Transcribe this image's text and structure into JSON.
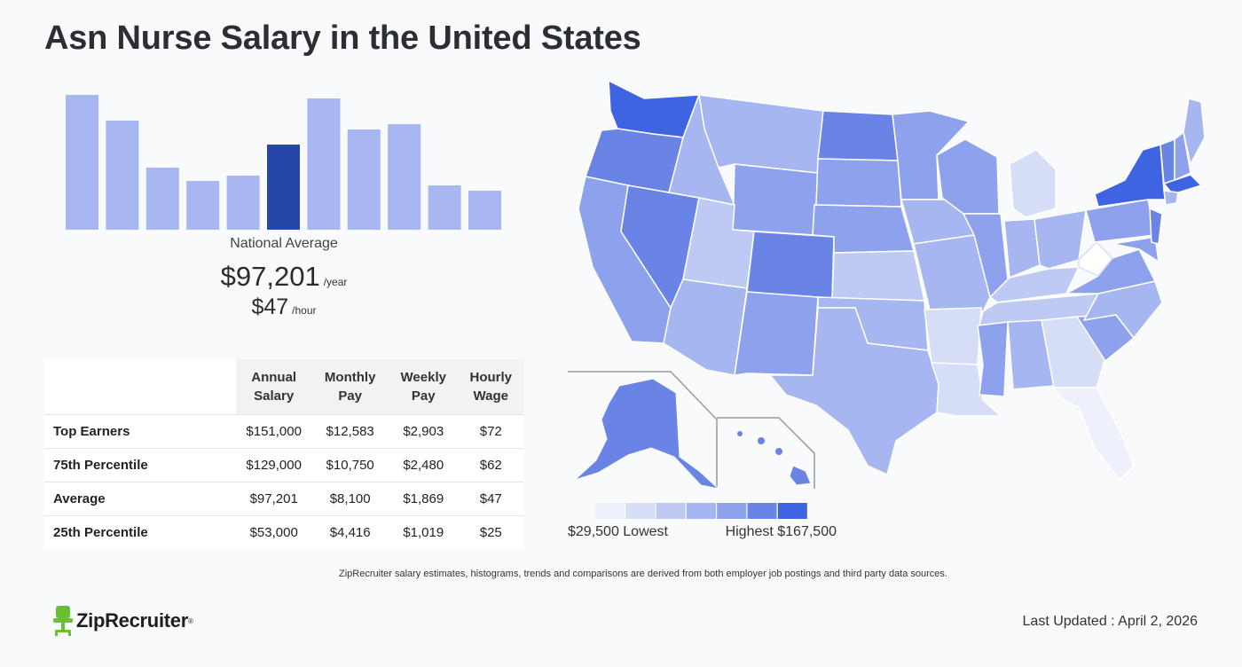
{
  "title": "Asn Nurse Salary in the United States",
  "national": {
    "label": "National Average",
    "yearly": "$97,201",
    "yearly_unit": "/year",
    "hourly": "$47",
    "hourly_unit": "/hour"
  },
  "chart_data": {
    "type": "bar",
    "values": [
      152,
      123,
      70,
      55,
      61,
      96,
      148,
      113,
      119,
      50,
      44
    ],
    "highlight_index": 5,
    "colors": {
      "bar": "#a8b7f2",
      "highlight": "#2546a8"
    }
  },
  "table": {
    "headers": [
      [
        "Annual",
        "Salary"
      ],
      [
        "Monthly",
        "Pay"
      ],
      [
        "Weekly",
        "Pay"
      ],
      [
        "Hourly",
        "Wage"
      ]
    ],
    "rows": [
      {
        "label": "Top Earners",
        "annual": "$151,000",
        "monthly": "$12,583",
        "weekly": "$2,903",
        "hourly": "$72"
      },
      {
        "label": "75th Percentile",
        "annual": "$129,000",
        "monthly": "$10,750",
        "weekly": "$2,480",
        "hourly": "$62"
      },
      {
        "label": "Average",
        "annual": "$97,201",
        "monthly": "$8,100",
        "weekly": "$1,869",
        "hourly": "$47"
      },
      {
        "label": "25th Percentile",
        "annual": "$53,000",
        "monthly": "$4,416",
        "weekly": "$1,019",
        "hourly": "$25"
      }
    ]
  },
  "map": {
    "legend_low": "$29,500 Lowest",
    "legend_high": "Highest $167,500",
    "legend_colors": [
      "#eef1fb",
      "#d6ddf7",
      "#bfcaf4",
      "#a6b6f0",
      "#8da1ec",
      "#6a84e6",
      "#3f64e1"
    ]
  },
  "footnote": "ZipRecruiter salary estimates, histograms, trends and comparisons are derived from both employer job postings and third party data sources.",
  "logo": {
    "name": "ZipRecruiter",
    "mark": "®",
    "color": "#6abf2f"
  },
  "last_updated": "Last Updated : April 2, 2026"
}
